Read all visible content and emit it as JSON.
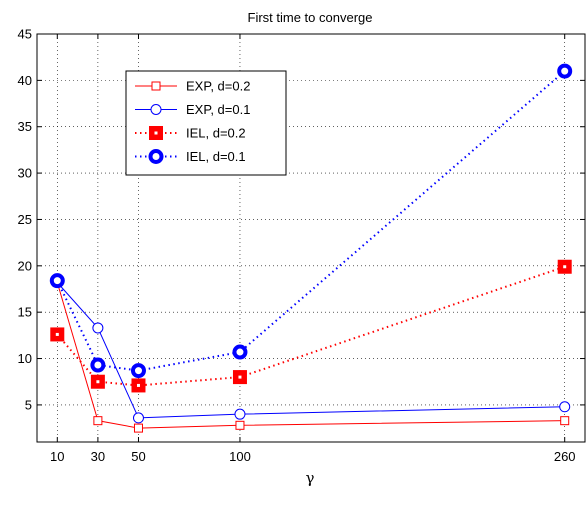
{
  "chart_data": {
    "type": "line",
    "title": "First time to converge",
    "xlabel": "γ",
    "ylabel": "",
    "x": [
      10,
      30,
      50,
      100,
      260
    ],
    "x_ticks": [
      "10",
      "30",
      "50",
      "100",
      "260"
    ],
    "y_ticks": [
      "5",
      "10",
      "15",
      "20",
      "25",
      "30",
      "35",
      "40",
      "45"
    ],
    "xlim": [
      0,
      270
    ],
    "ylim": [
      1,
      45
    ],
    "grid": true,
    "legend_position": "top-left",
    "series": [
      {
        "name": "EXP, d=0.2",
        "values": [
          18.2,
          3.3,
          2.5,
          2.8,
          3.3
        ],
        "color": "#ff0000",
        "line": "solid",
        "marker": "square-open"
      },
      {
        "name": "EXP, d=0.1",
        "values": [
          18.2,
          13.3,
          3.6,
          4.0,
          4.8
        ],
        "color": "#0000ff",
        "line": "solid",
        "marker": "circle-open"
      },
      {
        "name": "IEL, d=0.2",
        "values": [
          12.6,
          7.5,
          7.1,
          8.0,
          19.9
        ],
        "color": "#ff0000",
        "line": "dotted",
        "marker": "square-filled"
      },
      {
        "name": "IEL, d=0.1",
        "values": [
          18.4,
          9.3,
          8.7,
          10.7,
          41.0
        ],
        "color": "#0000ff",
        "line": "dotted",
        "marker": "circle-filled"
      }
    ]
  }
}
